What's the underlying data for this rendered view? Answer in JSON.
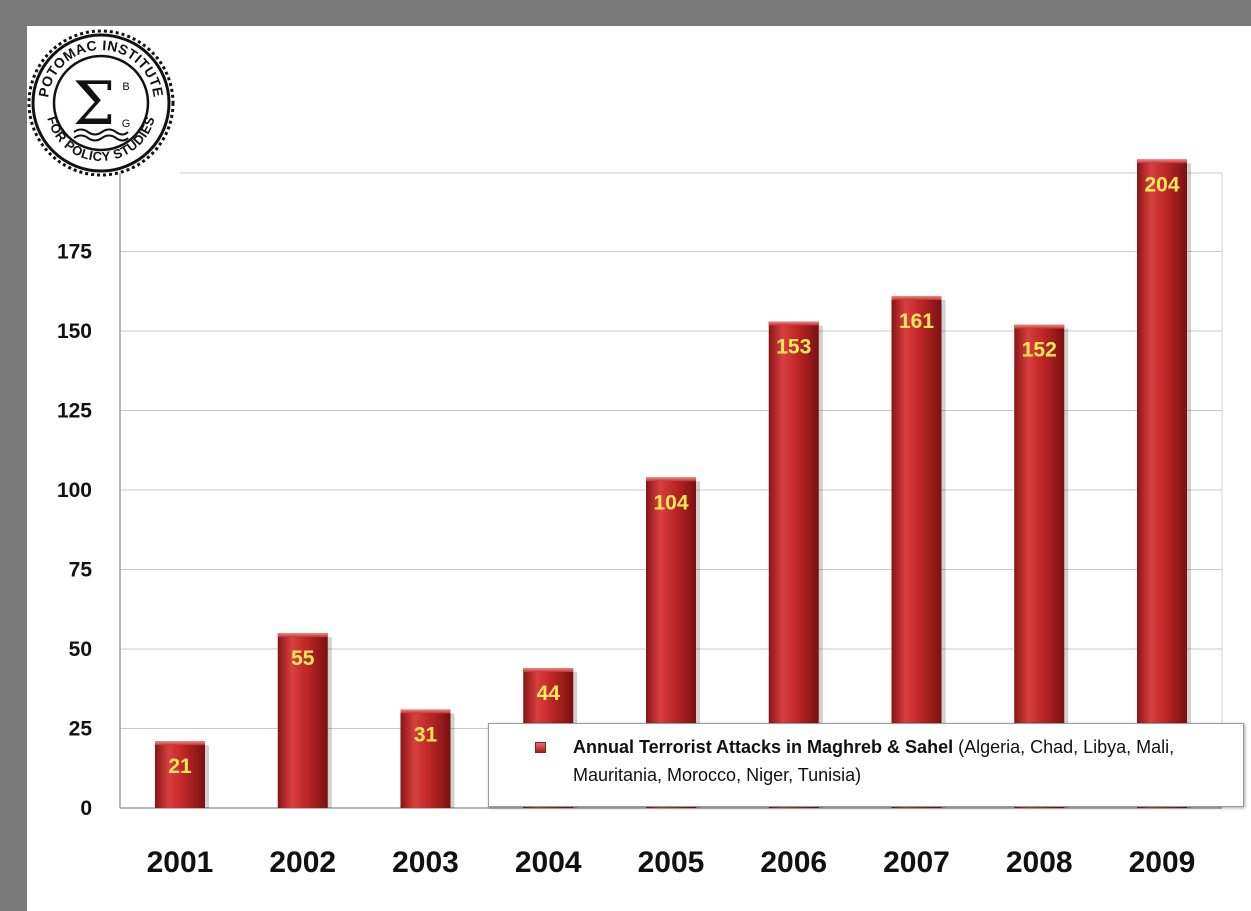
{
  "logo": {
    "arc_top": "POTOMAC INSTITUTE",
    "arc_bottom": "FOR POLICY STUDIES",
    "symbol": "Σ",
    "superscript": "B",
    "subscript": "G"
  },
  "legend": {
    "series_name": "Annual Terrorist Attacks in Maghreb & Sahel",
    "series_detail": " (Algeria, Chad, Libya, Mali, Mauritania, Morocco, Niger, Tunisia)",
    "position": "bottom-right"
  },
  "chart_data": {
    "type": "bar",
    "categories": [
      "2001",
      "2002",
      "2003",
      "2004",
      "2005",
      "2006",
      "2007",
      "2008",
      "2009"
    ],
    "series": [
      {
        "name": "Annual Terrorist Attacks in Maghreb & Sahel (Algeria, Chad, Libya, Mali, Mauritania, Morocco, Niger, Tunisia)",
        "values": [
          21,
          55,
          31,
          44,
          104,
          153,
          161,
          152,
          204
        ],
        "data_labels": [
          "21",
          "55",
          "31",
          "44",
          "104",
          "153",
          "161",
          "152",
          "204"
        ]
      }
    ],
    "y_ticks": [
      "0",
      "25",
      "50",
      "75",
      "100",
      "125",
      "150",
      "175"
    ],
    "ylim": [
      0,
      200
    ],
    "grid": true,
    "title": "",
    "xlabel": "",
    "ylabel": "",
    "colors": {
      "bar": "#b52222",
      "bar_light": "#e25a5a",
      "bar_dark": "#7a1010",
      "data_label": "#ffe85a",
      "grid": "#c8c8c8"
    }
  }
}
